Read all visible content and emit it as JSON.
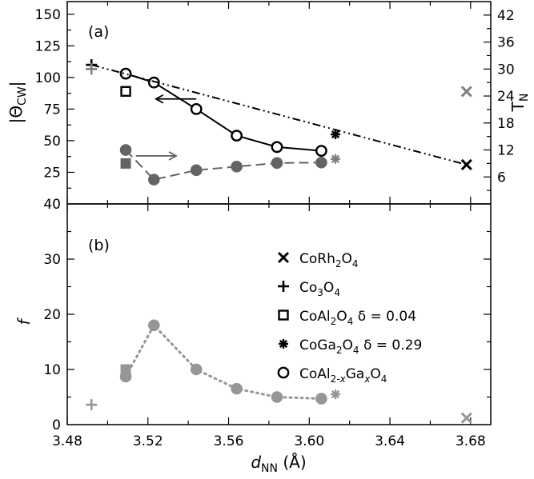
{
  "chart_data": [
    {
      "panel": "(a)",
      "type": "line",
      "ylabel_left": "|ΘCW|",
      "ylabel_left_main": "|Θ",
      "ylabel_left_sub": "CW",
      "ylabel_left_close": "|",
      "ylabel_right": "TN",
      "ylabel_right_main": "T",
      "ylabel_right_sub": "N",
      "xlim": [
        3.48,
        3.69
      ],
      "ylim_left": [
        0,
        160
      ],
      "ylim_right": [
        0,
        45
      ],
      "yticks_left": [
        25,
        50,
        75,
        100,
        125,
        150
      ],
      "yticks_right": [
        6,
        12,
        18,
        24,
        30,
        36,
        42
      ],
      "series": [
        {
          "name": "Theta_CW CoAl2-xGaxO4",
          "axis": "left",
          "marker": "circle",
          "style": "solid",
          "color": "#000000",
          "x": [
            3.509,
            3.523,
            3.544,
            3.564,
            3.584,
            3.606
          ],
          "y": [
            103,
            96,
            75,
            54,
            45,
            42
          ]
        },
        {
          "name": "T_N CoAl2-xGaxO4",
          "axis": "right",
          "marker": "circle-filled",
          "style": "dashed",
          "color": "#646464",
          "x": [
            3.509,
            3.523,
            3.544,
            3.564,
            3.584,
            3.606
          ],
          "y": [
            12,
            5.4,
            7.5,
            8.3,
            9.1,
            9.2
          ]
        },
        {
          "name": "Theta_CW trend",
          "axis": "left",
          "marker": "none",
          "style": "dashdot",
          "color": "#000000",
          "x": [
            3.492,
            3.678
          ],
          "y": [
            110,
            31
          ]
        },
        {
          "name": "Theta_CW CoRh2O4",
          "axis": "left",
          "marker": "x",
          "color": "#000000",
          "x": [
            3.678
          ],
          "y": [
            31
          ]
        },
        {
          "name": "Theta_CW Co3O4",
          "axis": "left",
          "marker": "plus",
          "color": "#000000",
          "x": [
            3.492
          ],
          "y": [
            110
          ]
        },
        {
          "name": "Theta_CW CoAl2O4",
          "axis": "left",
          "marker": "square",
          "color": "#000000",
          "x": [
            3.509
          ],
          "y": [
            89
          ]
        },
        {
          "name": "Theta_CW CoGa2O4",
          "axis": "left",
          "marker": "asterisk",
          "color": "#000000",
          "x": [
            3.613
          ],
          "y": [
            55
          ]
        },
        {
          "name": "T_N CoRh2O4",
          "axis": "right",
          "marker": "x",
          "color": "#808080",
          "x": [
            3.678
          ],
          "y": [
            25
          ]
        },
        {
          "name": "T_N Co3O4",
          "axis": "right",
          "marker": "plus",
          "color": "#808080",
          "x": [
            3.492
          ],
          "y": [
            30
          ]
        },
        {
          "name": "T_N CoAl2O4",
          "axis": "right",
          "marker": "square-filled",
          "color": "#646464",
          "x": [
            3.509
          ],
          "y": [
            9
          ]
        },
        {
          "name": "T_N CoGa2O4",
          "axis": "right",
          "marker": "asterisk",
          "color": "#808080",
          "x": [
            3.613
          ],
          "y": [
            10
          ]
        }
      ],
      "annotations": [
        {
          "type": "arrow",
          "direction": "left",
          "color": "#000000",
          "x_from": 3.544,
          "x_to": 3.524,
          "y_left": 83
        },
        {
          "type": "arrow",
          "direction": "right",
          "color": "#646464",
          "x_from": 3.514,
          "x_to": 3.534,
          "y_left": 38
        }
      ]
    },
    {
      "panel": "(b)",
      "type": "line",
      "xlabel": "dNN (Å)",
      "xlabel_main": "d",
      "xlabel_sub": "NN",
      "xlabel_unit": " (Å)",
      "ylabel": "f",
      "xlim": [
        3.48,
        3.69
      ],
      "ylim": [
        0,
        40
      ],
      "xticks": [
        3.48,
        3.52,
        3.56,
        3.6,
        3.64,
        3.68
      ],
      "xtick_labels": [
        "3.48",
        "3.52",
        "3.56",
        "3.60",
        "3.64",
        "3.68"
      ],
      "yticks": [
        0,
        10,
        20,
        30,
        40
      ],
      "series": [
        {
          "name": "f CoAl2-xGaxO4",
          "marker": "circle-filled",
          "style": "dotted",
          "color": "#969696",
          "x": [
            3.509,
            3.523,
            3.544,
            3.564,
            3.584,
            3.606
          ],
          "y": [
            8.7,
            18,
            10,
            6.5,
            5,
            4.7
          ]
        },
        {
          "name": "f CoRh2O4",
          "marker": "x",
          "color": "#969696",
          "x": [
            3.678
          ],
          "y": [
            1.2
          ]
        },
        {
          "name": "f Co3O4",
          "marker": "plus",
          "color": "#969696",
          "x": [
            3.492
          ],
          "y": [
            3.6
          ]
        },
        {
          "name": "f CoAl2O4",
          "marker": "square-filled",
          "color": "#969696",
          "x": [
            3.509
          ],
          "y": [
            10
          ]
        },
        {
          "name": "f CoGa2O4",
          "marker": "asterisk",
          "color": "#969696",
          "x": [
            3.613
          ],
          "y": [
            5.5
          ]
        }
      ],
      "legend": {
        "placement": "top-right",
        "entries": [
          {
            "marker": "x",
            "parts": [
              {
                "t": "CoRh"
              },
              {
                "t": "2",
                "sub": true
              },
              {
                "t": "O"
              },
              {
                "t": "4",
                "sub": true
              }
            ]
          },
          {
            "marker": "plus",
            "parts": [
              {
                "t": "Co"
              },
              {
                "t": "3",
                "sub": true
              },
              {
                "t": "O"
              },
              {
                "t": "4",
                "sub": true
              }
            ]
          },
          {
            "marker": "square",
            "parts": [
              {
                "t": "CoAl"
              },
              {
                "t": "2",
                "sub": true
              },
              {
                "t": "O"
              },
              {
                "t": "4",
                "sub": true
              },
              {
                "t": " δ = 0.04"
              }
            ]
          },
          {
            "marker": "asterisk",
            "parts": [
              {
                "t": "CoGa"
              },
              {
                "t": "2",
                "sub": true
              },
              {
                "t": "O"
              },
              {
                "t": "4",
                "sub": true
              },
              {
                "t": " δ = 0.29"
              }
            ]
          },
          {
            "marker": "circle",
            "parts": [
              {
                "t": "CoAl"
              },
              {
                "t": "2-",
                "sub": true
              },
              {
                "t": "x",
                "sub": true,
                "italic": true
              },
              {
                "t": "Ga"
              },
              {
                "t": "x",
                "sub": true,
                "italic": true
              },
              {
                "t": "O"
              },
              {
                "t": "4",
                "sub": true
              }
            ]
          }
        ]
      }
    }
  ]
}
